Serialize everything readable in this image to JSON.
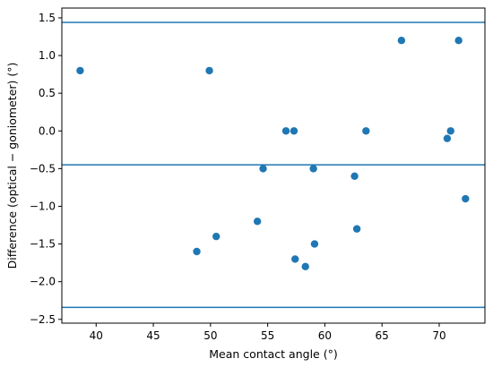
{
  "chart_data": {
    "type": "scatter",
    "title": "",
    "xlabel": "Mean contact angle (°)",
    "ylabel": "Difference (optical − goniometer) (°)",
    "xlim": [
      37,
      74
    ],
    "ylim": [
      -2.55,
      1.63
    ],
    "x_ticks": [
      40,
      45,
      50,
      55,
      60,
      65,
      70
    ],
    "x_tick_labels": [
      "40",
      "45",
      "50",
      "55",
      "60",
      "65",
      "70"
    ],
    "y_ticks": [
      1.5,
      1.0,
      0.5,
      0.0,
      -0.5,
      -1.0,
      -1.5,
      -2.0,
      -2.5
    ],
    "y_tick_labels": [
      "1.5",
      "1.0",
      "0.5",
      "0.0",
      "−0.5",
      "−1.0",
      "−1.5",
      "−2.0",
      "−2.5"
    ],
    "grid": false,
    "marker_color": "#1f77b4",
    "line_color": "#1f77b4",
    "horizontal_lines": [
      1.44,
      -0.45,
      -2.34
    ],
    "points": [
      {
        "x": 38.6,
        "y": 0.8
      },
      {
        "x": 49.9,
        "y": 0.8
      },
      {
        "x": 56.6,
        "y": 0.0
      },
      {
        "x": 57.3,
        "y": 0.0
      },
      {
        "x": 63.6,
        "y": 0.0
      },
      {
        "x": 66.7,
        "y": 1.2
      },
      {
        "x": 71.7,
        "y": 1.2
      },
      {
        "x": 70.7,
        "y": -0.1
      },
      {
        "x": 71.0,
        "y": 0.0
      },
      {
        "x": 54.6,
        "y": -0.5
      },
      {
        "x": 59.0,
        "y": -0.5
      },
      {
        "x": 62.6,
        "y": -0.6
      },
      {
        "x": 72.3,
        "y": -0.9
      },
      {
        "x": 54.1,
        "y": -1.2
      },
      {
        "x": 62.8,
        "y": -1.3
      },
      {
        "x": 50.5,
        "y": -1.4
      },
      {
        "x": 59.1,
        "y": -1.5
      },
      {
        "x": 48.8,
        "y": -1.6
      },
      {
        "x": 57.4,
        "y": -1.7
      },
      {
        "x": 58.3,
        "y": -1.8
      }
    ]
  }
}
